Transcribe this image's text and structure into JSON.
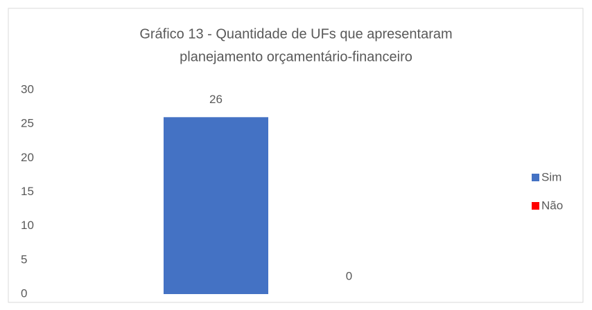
{
  "chart_data": {
    "type": "bar",
    "title": [
      "Gráfico 13 - Quantidade de UFs que apresentaram",
      "planejamento orçamentário-financeiro"
    ],
    "categories": [
      null
    ],
    "series": [
      {
        "name": "Sim",
        "color": "#4472c4",
        "values": [
          26
        ]
      },
      {
        "name": "Não",
        "color": "#ff0000",
        "values": [
          0
        ]
      }
    ],
    "ylim": [
      0,
      30
    ],
    "yticks": [
      0,
      5,
      10,
      15,
      20,
      25,
      30
    ],
    "grid": false,
    "legend": "right"
  }
}
